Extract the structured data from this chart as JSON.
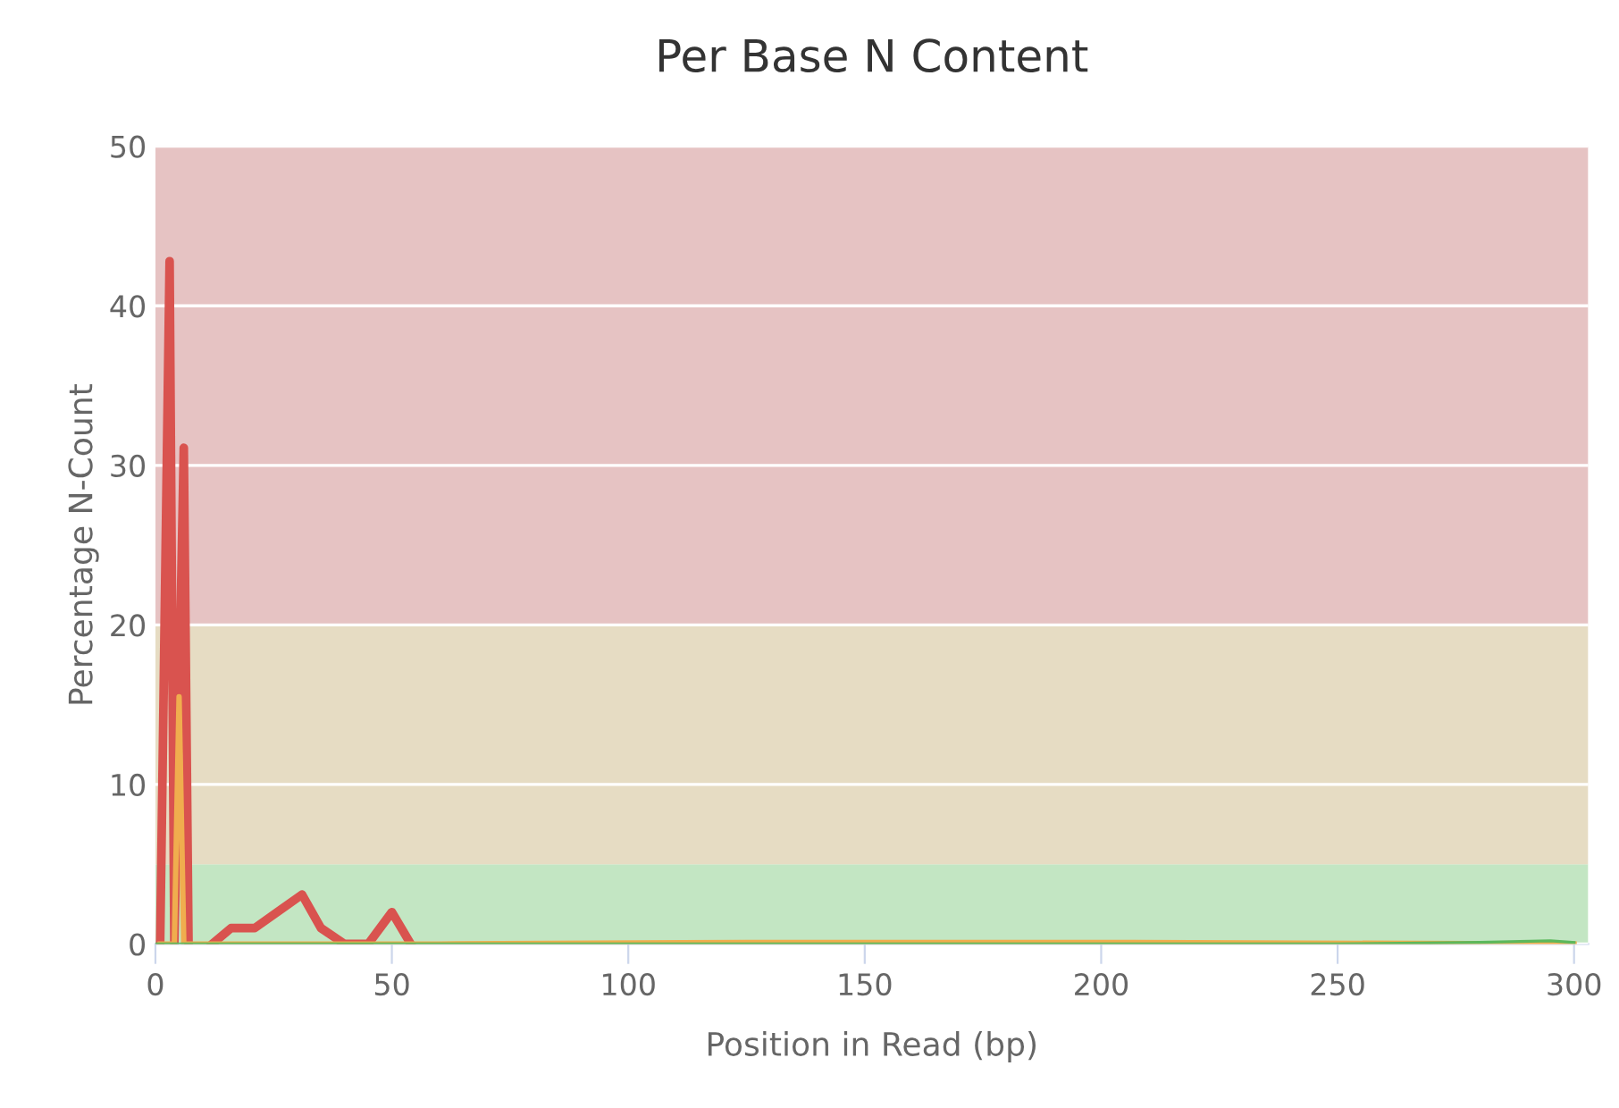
{
  "chart_data": {
    "type": "line",
    "title": "Per Base N Content",
    "xlabel": "Position in Read (bp)",
    "ylabel": "Percentage N-Count",
    "xlim": [
      0,
      303
    ],
    "xticks": [
      0,
      50,
      100,
      150,
      200,
      250,
      300
    ],
    "ylim": [
      0,
      50
    ],
    "yticks": [
      0,
      10,
      20,
      30,
      40,
      50
    ],
    "grid": "y",
    "marker": "none",
    "legend": false,
    "bands": [
      {
        "axis": "y",
        "from": 0,
        "to": 5,
        "color": "#c3e6c3"
      },
      {
        "axis": "y",
        "from": 5,
        "to": 20,
        "color": "#e6dcc3"
      },
      {
        "axis": "y",
        "from": 20,
        "to": 50,
        "color": "#e6c3c3"
      }
    ],
    "series": [
      {
        "color": "#d9534f",
        "x": [
          1,
          3,
          4,
          6,
          7,
          9,
          12,
          16,
          21,
          31,
          35,
          40,
          45,
          50,
          54
        ],
        "values": [
          0,
          42.8,
          0,
          31.1,
          0,
          null,
          0,
          1,
          1,
          3.1,
          1,
          0,
          0,
          2,
          0
        ]
      },
      {
        "color": "#f0ad4e",
        "x": [
          1,
          4,
          5,
          6,
          60,
          125,
          200,
          300
        ],
        "values": [
          0,
          0,
          15.5,
          0,
          0,
          0.1,
          0.1,
          0
        ]
      },
      {
        "color": "#5cb85c",
        "x": [
          0,
          50,
          100,
          150,
          200,
          250,
          280,
          295,
          300
        ],
        "values": [
          0,
          0,
          0,
          0,
          0,
          0,
          0.1,
          0.2,
          0.1
        ]
      }
    ]
  }
}
